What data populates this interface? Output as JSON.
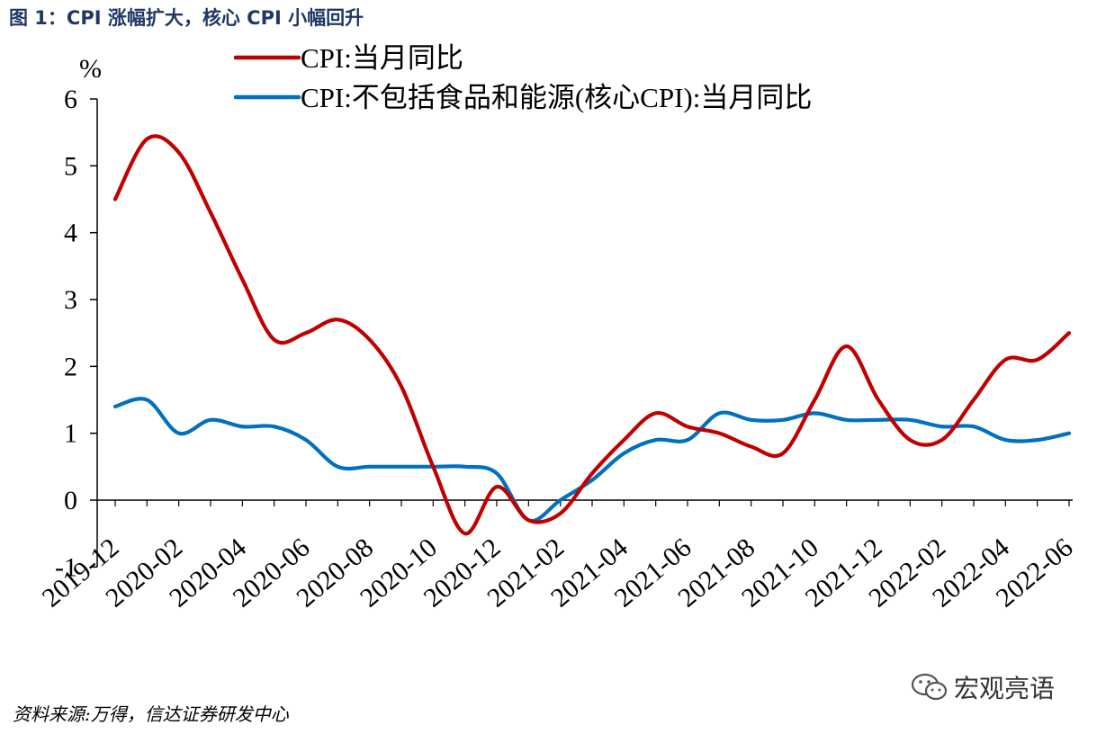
{
  "figure": {
    "title": "图 1：CPI 涨幅扩大，核心 CPI 小幅回升",
    "source": "资料来源:万得，信达证券研发中心",
    "watermark": "宏观亮语"
  },
  "chart_data": {
    "type": "line",
    "title": "图 1：CPI 涨幅扩大，核心 CPI 小幅回升",
    "ylabel": "%",
    "xlabel": "",
    "ylim": [
      -1,
      6
    ],
    "yticks": [
      -1,
      0,
      1,
      2,
      3,
      4,
      5,
      6
    ],
    "legend_position": "top",
    "grid": false,
    "x": [
      "2019-12",
      "2020-01",
      "2020-02",
      "2020-03",
      "2020-04",
      "2020-05",
      "2020-06",
      "2020-07",
      "2020-08",
      "2020-09",
      "2020-10",
      "2020-11",
      "2020-12",
      "2021-01",
      "2021-02",
      "2021-03",
      "2021-04",
      "2021-05",
      "2021-06",
      "2021-07",
      "2021-08",
      "2021-09",
      "2021-10",
      "2021-11",
      "2021-12",
      "2022-01",
      "2022-02",
      "2022-03",
      "2022-04",
      "2022-05",
      "2022-06"
    ],
    "xtick_labels": [
      "2019-12",
      "2020-02",
      "2020-04",
      "2020-06",
      "2020-08",
      "2020-10",
      "2020-12",
      "2021-02",
      "2021-04",
      "2021-06",
      "2021-08",
      "2021-10",
      "2021-12",
      "2022-02",
      "2022-04",
      "2022-06"
    ],
    "series": [
      {
        "name": "CPI:当月同比",
        "color": "#c00000",
        "values": [
          4.5,
          5.4,
          5.2,
          4.3,
          3.3,
          2.4,
          2.5,
          2.7,
          2.4,
          1.7,
          0.5,
          -0.5,
          0.2,
          -0.3,
          -0.2,
          0.4,
          0.9,
          1.3,
          1.1,
          1.0,
          0.8,
          0.7,
          1.5,
          2.3,
          1.5,
          0.9,
          0.9,
          1.5,
          2.1,
          2.1,
          2.5
        ]
      },
      {
        "name": "CPI:不包括食品和能源(核心CPI):当月同比",
        "color": "#0070c0",
        "values": [
          1.4,
          1.5,
          1.0,
          1.2,
          1.1,
          1.1,
          0.9,
          0.5,
          0.5,
          0.5,
          0.5,
          0.5,
          0.4,
          -0.3,
          0.0,
          0.3,
          0.7,
          0.9,
          0.9,
          1.3,
          1.2,
          1.2,
          1.3,
          1.2,
          1.2,
          1.2,
          1.1,
          1.1,
          0.9,
          0.9,
          1.0
        ]
      }
    ]
  }
}
